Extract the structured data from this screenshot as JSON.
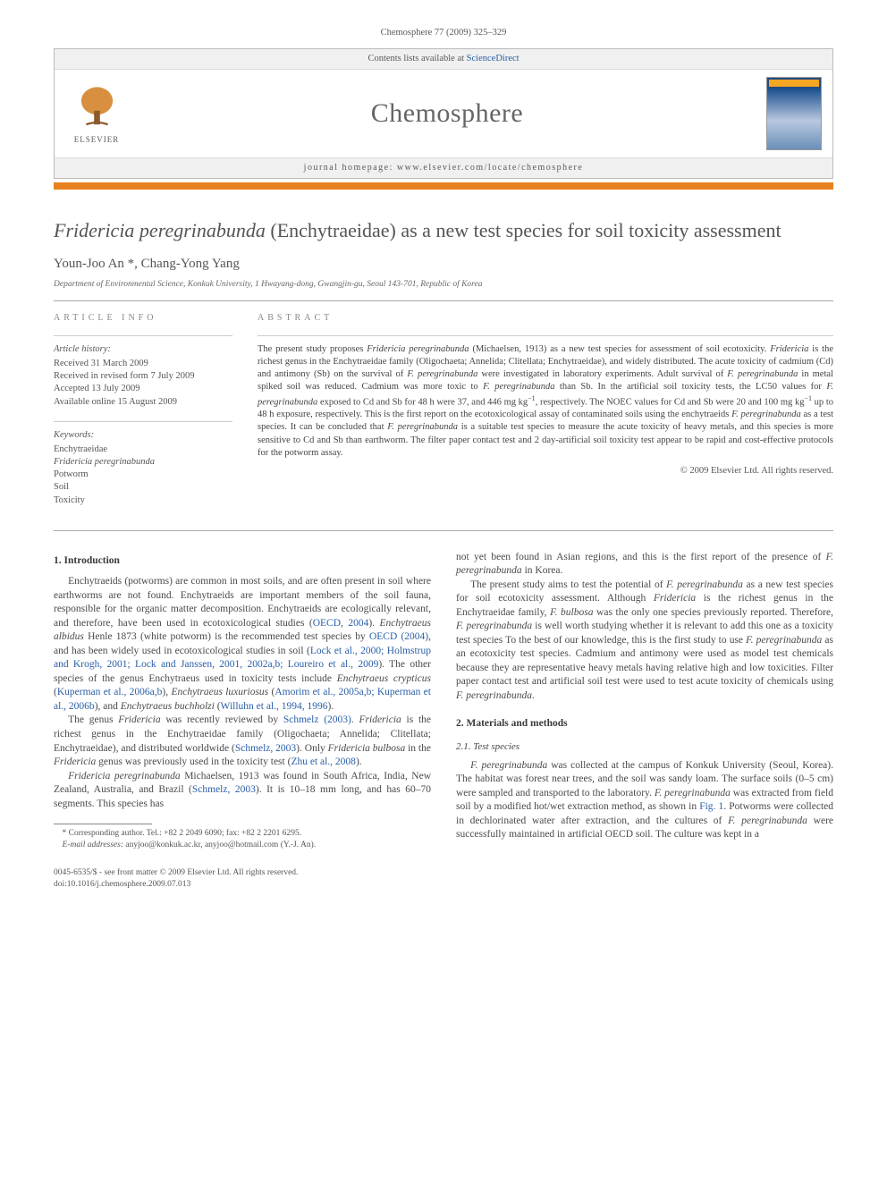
{
  "header": {
    "citation": "Chemosphere 77 (2009) 325–329",
    "contents_line": "Contents lists available at ",
    "contents_link": "ScienceDirect",
    "journal": "Chemosphere",
    "homepage_label": "journal homepage: www.elsevier.com/locate/chemosphere",
    "publisher": "ELSEVIER"
  },
  "title_parts": {
    "pre_italic": "",
    "italic1": "Fridericia peregrinabunda",
    "after": " (Enchytraeidae) as a new test species for soil toxicity assessment"
  },
  "authors": "Youn-Joo An *, Chang-Yong Yang",
  "affiliation": "Department of Environmental Science, Konkuk University, 1 Hwayang-dong, Gwangjin-gu, Seoul 143-701, Republic of Korea",
  "info": {
    "heading": "ARTICLE INFO",
    "history_label": "Article history:",
    "history": [
      "Received 31 March 2009",
      "Received in revised form 7 July 2009",
      "Accepted 13 July 2009",
      "Available online 15 August 2009"
    ],
    "keywords_label": "Keywords:",
    "keywords": [
      "Enchytraeidae",
      "Fridericia peregrinabunda",
      "Potworm",
      "Soil",
      "Toxicity"
    ]
  },
  "abstract": {
    "heading": "ABSTRACT",
    "text_html": "The present study proposes <span class=\"italic\">Fridericia peregrinabunda</span> (Michaelsen, 1913) as a new test species for assessment of soil ecotoxicity. <span class=\"italic\">Fridericia</span> is the richest genus in the Enchytraeidae family (Oligochaeta; Annelida; Clitellata; Enchytraeidae), and widely distributed. The acute toxicity of cadmium (Cd) and antimony (Sb) on the survival of <span class=\"italic\">F. peregrinabunda</span> were investigated in laboratory experiments. Adult survival of <span class=\"italic\">F. peregrinabunda</span> in metal spiked soil was reduced. Cadmium was more toxic to <span class=\"italic\">F. peregrinabunda</span> than Sb. In the artificial soil toxicity tests, the LC50 values for <span class=\"italic\">F. peregrinabunda</span> exposed to Cd and Sb for 48 h were 37, and 446 mg kg<sup>−1</sup>, respectively. The NOEC values for Cd and Sb were 20 and 100 mg kg<sup>−1</sup> up to 48 h exposure, respectively. This is the first report on the ecotoxicological assay of contaminated soils using the enchytraeids <span class=\"italic\">F. peregrinabunda</span> as a test species. It can be concluded that <span class=\"italic\">F. peregrinabunda</span> is a suitable test species to measure the acute toxicity of heavy metals, and this species is more sensitive to Cd and Sb than earthworm. The filter paper contact test and 2 day-artificial soil toxicity test appear to be rapid and cost-effective protocols for the potworm assay.",
    "copyright": "© 2009 Elsevier Ltd. All rights reserved."
  },
  "body": {
    "s1_heading": "1. Introduction",
    "p1": "Enchytraeids (potworms) are common in most soils, and are often present in soil where earthworms are not found. Enchytraeids are important members of the soil fauna, responsible for the organic matter decomposition. Enchytraeids are ecologically relevant, and therefore, have been used in ecotoxicological studies (<span class=\"ref\">OECD, 2004</span>). <span class=\"italic\">Enchytraeus albidus</span> Henle 1873 (white potworm) is the recommended test species by <span class=\"ref\">OECD (2004)</span>, and has been widely used in ecotoxicological studies in soil (<span class=\"ref\">Lock et al., 2000; Holmstrup and Krogh, 2001; Lock and Janssen, 2001, 2002a,b; Loureiro et al., 2009</span>). The other species of the genus Enchytraeus used in toxicity tests include <span class=\"italic\">Enchytraeus crypticus</span> (<span class=\"ref\">Kuperman et al., 2006a,b</span>), <span class=\"italic\">Enchytraeus luxuriosus</span> (<span class=\"ref\">Amorim et al., 2005a,b; Kuperman et al., 2006b</span>), and <span class=\"italic\">Enchytraeus buchholzi</span> (<span class=\"ref\">Willuhn et al., 1994, 1996</span>).",
    "p2": "The genus <span class=\"italic\">Fridericia</span> was recently reviewed by <span class=\"ref\">Schmelz (2003)</span>. <span class=\"italic\">Fridericia</span> is the richest genus in the Enchytraeidae family (Oligochaeta; Annelida; Clitellata; Enchytraeidae), and distributed worldwide (<span class=\"ref\">Schmelz, 2003</span>). Only <span class=\"italic\">Fridericia bulbosa</span> in the <span class=\"italic\">Fridericia</span> genus was previously used in the toxicity test (<span class=\"ref\">Zhu et al., 2008</span>).",
    "p3": "<span class=\"italic\">Fridericia peregrinabunda</span> Michaelsen, 1913 was found in South Africa, India, New Zealand, Australia, and Brazil (<span class=\"ref\">Schmelz, 2003</span>). It is 10–18 mm long, and has 60–70 segments. This species has",
    "p4": "not yet been found in Asian regions, and this is the first report of the presence of <span class=\"italic\">F. peregrinabunda</span> in Korea.",
    "p5": "The present study aims to test the potential of <span class=\"italic\">F. peregrinabunda</span> as a new test species for soil ecotoxicity assessment. Although <span class=\"italic\">Fridericia</span> is the richest genus in the Enchytraeidae family, <span class=\"italic\">F. bulbosa</span> was the only one species previously reported. Therefore, <span class=\"italic\">F. peregrinabunda</span> is well worth studying whether it is relevant to add this one as a toxicity test species To the best of our knowledge, this is the first study to use <span class=\"italic\">F. peregrinabunda</span> as an ecotoxicity test species. Cadmium and antimony were used as model test chemicals because they are representative heavy metals having relative high and low toxicities. Filter paper contact test and artificial soil test were used to test acute toxicity of chemicals using <span class=\"italic\">F. peregrinabunda</span>.",
    "s2_heading": "2. Materials and methods",
    "s21_heading": "2.1. Test species",
    "p6": "<span class=\"italic\">F. peregrinabunda</span> was collected at the campus of Konkuk University (Seoul, Korea). The habitat was forest near trees, and the soil was sandy loam. The surface soils (0–5 cm) were sampled and transported to the laboratory. <span class=\"italic\">F. peregrinabunda</span> was extracted from field soil by a modified hot/wet extraction method, as shown in <span class=\"ref\">Fig. 1</span>. Potworms were collected in dechlorinated water after extraction, and the cultures of <span class=\"italic\">F. peregrinabunda</span> were successfully maintained in artificial OECD soil. The culture was kept in a"
  },
  "footnote": {
    "corr": "* Corresponding author. Tel.: +82 2 2049 6090; fax: +82 2 2201 6295.",
    "email_label": "E-mail addresses:",
    "emails": " anyjoo@konkuk.ac.kr, anyjoo@hotmail.com (Y.-J. An)."
  },
  "footer": {
    "line1": "0045-6535/$ - see front matter © 2009 Elsevier Ltd. All rights reserved.",
    "line2": "doi:10.1016/j.chemosphere.2009.07.013"
  },
  "colors": {
    "orange": "#e8821e",
    "link": "#2a5fa8",
    "text": "#4a4a4a"
  }
}
